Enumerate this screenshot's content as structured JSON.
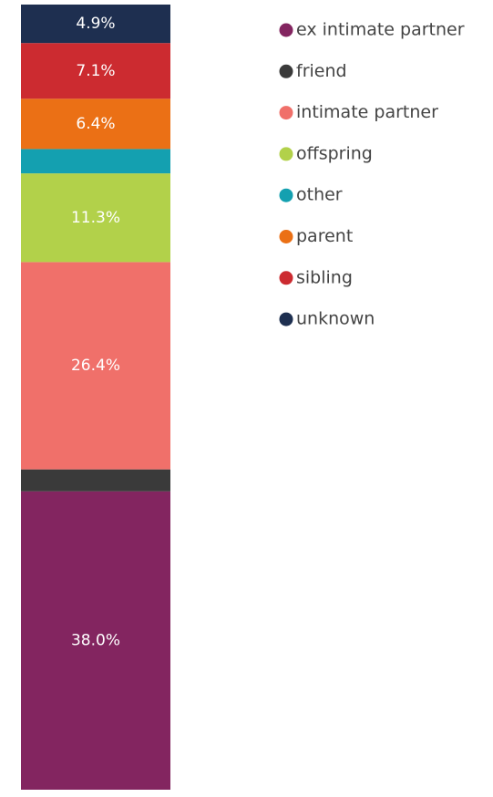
{
  "chart_data": {
    "type": "stacked_bar_100",
    "categories": [
      null
    ],
    "series": [
      {
        "name": "ex intimate partner",
        "color": "#832560",
        "values": [
          38.0
        ],
        "value_labels": [
          "38.0%"
        ]
      },
      {
        "name": "friend",
        "color": "#3a3a3a",
        "values": [
          2.8
        ]
      },
      {
        "name": "intimate partner",
        "color": "#f0706a",
        "values": [
          26.4
        ],
        "value_labels": [
          "26.4%"
        ]
      },
      {
        "name": "offspring",
        "color": "#b2d14a",
        "values": [
          11.3
        ],
        "value_labels": [
          "11.3%"
        ]
      },
      {
        "name": "other",
        "color": "#14a0b0",
        "values": [
          3.1
        ]
      },
      {
        "name": "parent",
        "color": "#eb7015",
        "values": [
          6.4
        ],
        "value_labels": [
          "6.4%"
        ]
      },
      {
        "name": "sibling",
        "color": "#cc2b30",
        "values": [
          7.1
        ],
        "value_labels": [
          "7.1%"
        ]
      },
      {
        "name": "unknown",
        "color": "#1e2f50",
        "values": [
          4.9
        ],
        "value_labels": [
          "4.9%"
        ]
      }
    ]
  }
}
